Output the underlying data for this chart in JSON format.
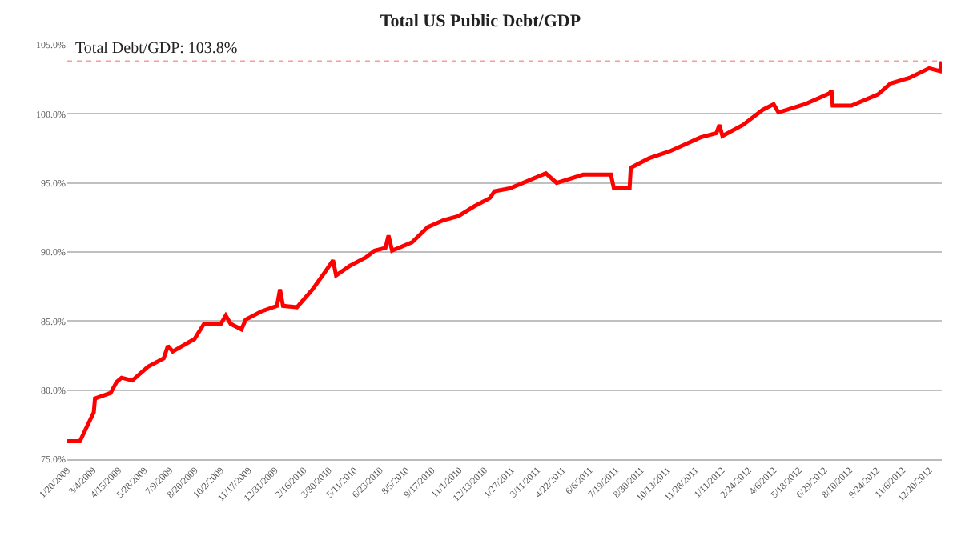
{
  "chart_data": {
    "type": "line",
    "title": "Total US Public Debt/GDP",
    "x": [
      "2009-01-20",
      "2009-01-25",
      "2009-02-10",
      "2009-03-05",
      "2009-03-07",
      "2009-04-02",
      "2009-04-12",
      "2009-04-20",
      "2009-05-08",
      "2009-06-03",
      "2009-06-29",
      "2009-07-06",
      "2009-07-14",
      "2009-08-19",
      "2009-09-04",
      "2009-10-02",
      "2009-10-10",
      "2009-10-18",
      "2009-11-05",
      "2009-11-12",
      "2009-12-08",
      "2010-01-03",
      "2010-01-08",
      "2010-01-13",
      "2010-02-05",
      "2010-03-03",
      "2010-03-26",
      "2010-04-06",
      "2010-04-11",
      "2010-05-04",
      "2010-05-30",
      "2010-06-14",
      "2010-07-02",
      "2010-07-07",
      "2010-07-13",
      "2010-08-15",
      "2010-09-10",
      "2010-10-06",
      "2010-10-31",
      "2010-11-26",
      "2010-12-22",
      "2010-12-30",
      "2011-01-24",
      "2011-03-25",
      "2011-04-12",
      "2011-05-26",
      "2011-07-11",
      "2011-07-16",
      "2011-08-11",
      "2011-08-13",
      "2011-09-13",
      "2011-10-17",
      "2011-12-07",
      "2012-01-02",
      "2012-01-07",
      "2012-01-12",
      "2012-02-15",
      "2012-03-19",
      "2012-04-06",
      "2012-04-14",
      "2012-05-28",
      "2012-07-08",
      "2012-07-11",
      "2012-07-13",
      "2012-08-13",
      "2012-09-26",
      "2012-10-17",
      "2012-11-17",
      "2012-12-20",
      "2013-01-07",
      "2013-01-10"
    ],
    "series": [
      {
        "color": "#ff0000",
        "values": [
          76.3,
          76.3,
          76.3,
          78.4,
          79.4,
          79.8,
          80.6,
          80.9,
          80.7,
          81.7,
          82.3,
          83.2,
          82.8,
          83.7,
          84.8,
          84.8,
          85.4,
          84.8,
          84.4,
          85.1,
          85.7,
          86.1,
          87.3,
          86.1,
          86.0,
          87.3,
          88.7,
          89.4,
          88.3,
          89.0,
          89.6,
          90.1,
          90.3,
          91.2,
          90.1,
          90.7,
          91.8,
          92.3,
          92.6,
          93.3,
          93.9,
          94.4,
          94.6,
          95.7,
          95.0,
          95.6,
          95.6,
          94.6,
          94.6,
          96.1,
          96.8,
          97.3,
          98.3,
          98.6,
          99.2,
          98.4,
          99.2,
          100.3,
          100.7,
          100.1,
          100.7,
          101.5,
          101.7,
          100.6,
          100.6,
          101.4,
          102.2,
          102.6,
          103.3,
          103.1,
          103.8
        ]
      }
    ],
    "xlim": [
      "2009-01-20",
      "2013-01-10"
    ],
    "xticks": [
      {
        "value": "2009-01-20",
        "label": "1/20/2009"
      },
      {
        "value": "2009-03-04",
        "label": "3/4/2009"
      },
      {
        "value": "2009-04-15",
        "label": "4/15/2009"
      },
      {
        "value": "2009-05-28",
        "label": "5/28/2009"
      },
      {
        "value": "2009-07-09",
        "label": "7/9/2009"
      },
      {
        "value": "2009-08-20",
        "label": "8/20/2009"
      },
      {
        "value": "2009-10-02",
        "label": "10/2/2009"
      },
      {
        "value": "2009-11-17",
        "label": "11/17/2009"
      },
      {
        "value": "2009-12-31",
        "label": "12/31/2009"
      },
      {
        "value": "2010-02-16",
        "label": "2/16/2010"
      },
      {
        "value": "2010-03-30",
        "label": "3/30/2010"
      },
      {
        "value": "2010-05-11",
        "label": "5/11/2010"
      },
      {
        "value": "2010-06-23",
        "label": "6/23/2010"
      },
      {
        "value": "2010-08-05",
        "label": "8/5/2010"
      },
      {
        "value": "2010-09-17",
        "label": "9/17/2010"
      },
      {
        "value": "2010-11-01",
        "label": "11/1/2010"
      },
      {
        "value": "2010-12-13",
        "label": "12/13/2010"
      },
      {
        "value": "2011-01-27",
        "label": "1/27/2011"
      },
      {
        "value": "2011-03-11",
        "label": "3/11/2011"
      },
      {
        "value": "2011-04-22",
        "label": "4/22/2011"
      },
      {
        "value": "2011-06-06",
        "label": "6/6/2011"
      },
      {
        "value": "2011-07-19",
        "label": "7/19/2011"
      },
      {
        "value": "2011-08-30",
        "label": "8/30/2011"
      },
      {
        "value": "2011-10-13",
        "label": "10/13/2011"
      },
      {
        "value": "2011-11-28",
        "label": "11/28/2011"
      },
      {
        "value": "2012-01-11",
        "label": "1/11/2012"
      },
      {
        "value": "2012-02-24",
        "label": "2/24/2012"
      },
      {
        "value": "2012-04-06",
        "label": "4/6/2012"
      },
      {
        "value": "2012-05-18",
        "label": "5/18/2012"
      },
      {
        "value": "2012-06-29",
        "label": "6/29/2012"
      },
      {
        "value": "2012-08-10",
        "label": "8/10/2012"
      },
      {
        "value": "2012-09-24",
        "label": "9/24/2012"
      },
      {
        "value": "2012-11-06",
        "label": "11/6/2012"
      },
      {
        "value": "2012-12-20",
        "label": "12/20/2012"
      }
    ],
    "ylim": [
      75,
      105
    ],
    "yticks": [
      {
        "value": 75,
        "label": "75.0%"
      },
      {
        "value": 80,
        "label": "80.0%"
      },
      {
        "value": 85,
        "label": "85.0%"
      },
      {
        "value": 90,
        "label": "90.0%"
      },
      {
        "value": 95,
        "label": "95.0%"
      },
      {
        "value": 100,
        "label": "100.0%"
      },
      {
        "value": 105,
        "label": "105.0%"
      }
    ],
    "ref_lines": [
      {
        "axis": "y",
        "value": 103.8,
        "label": "Total Debt/GDP: 103.8%",
        "color": "#ff9999",
        "line_style": "dotted"
      }
    ],
    "grid": "y",
    "marker": "none",
    "line_style": "solid"
  }
}
